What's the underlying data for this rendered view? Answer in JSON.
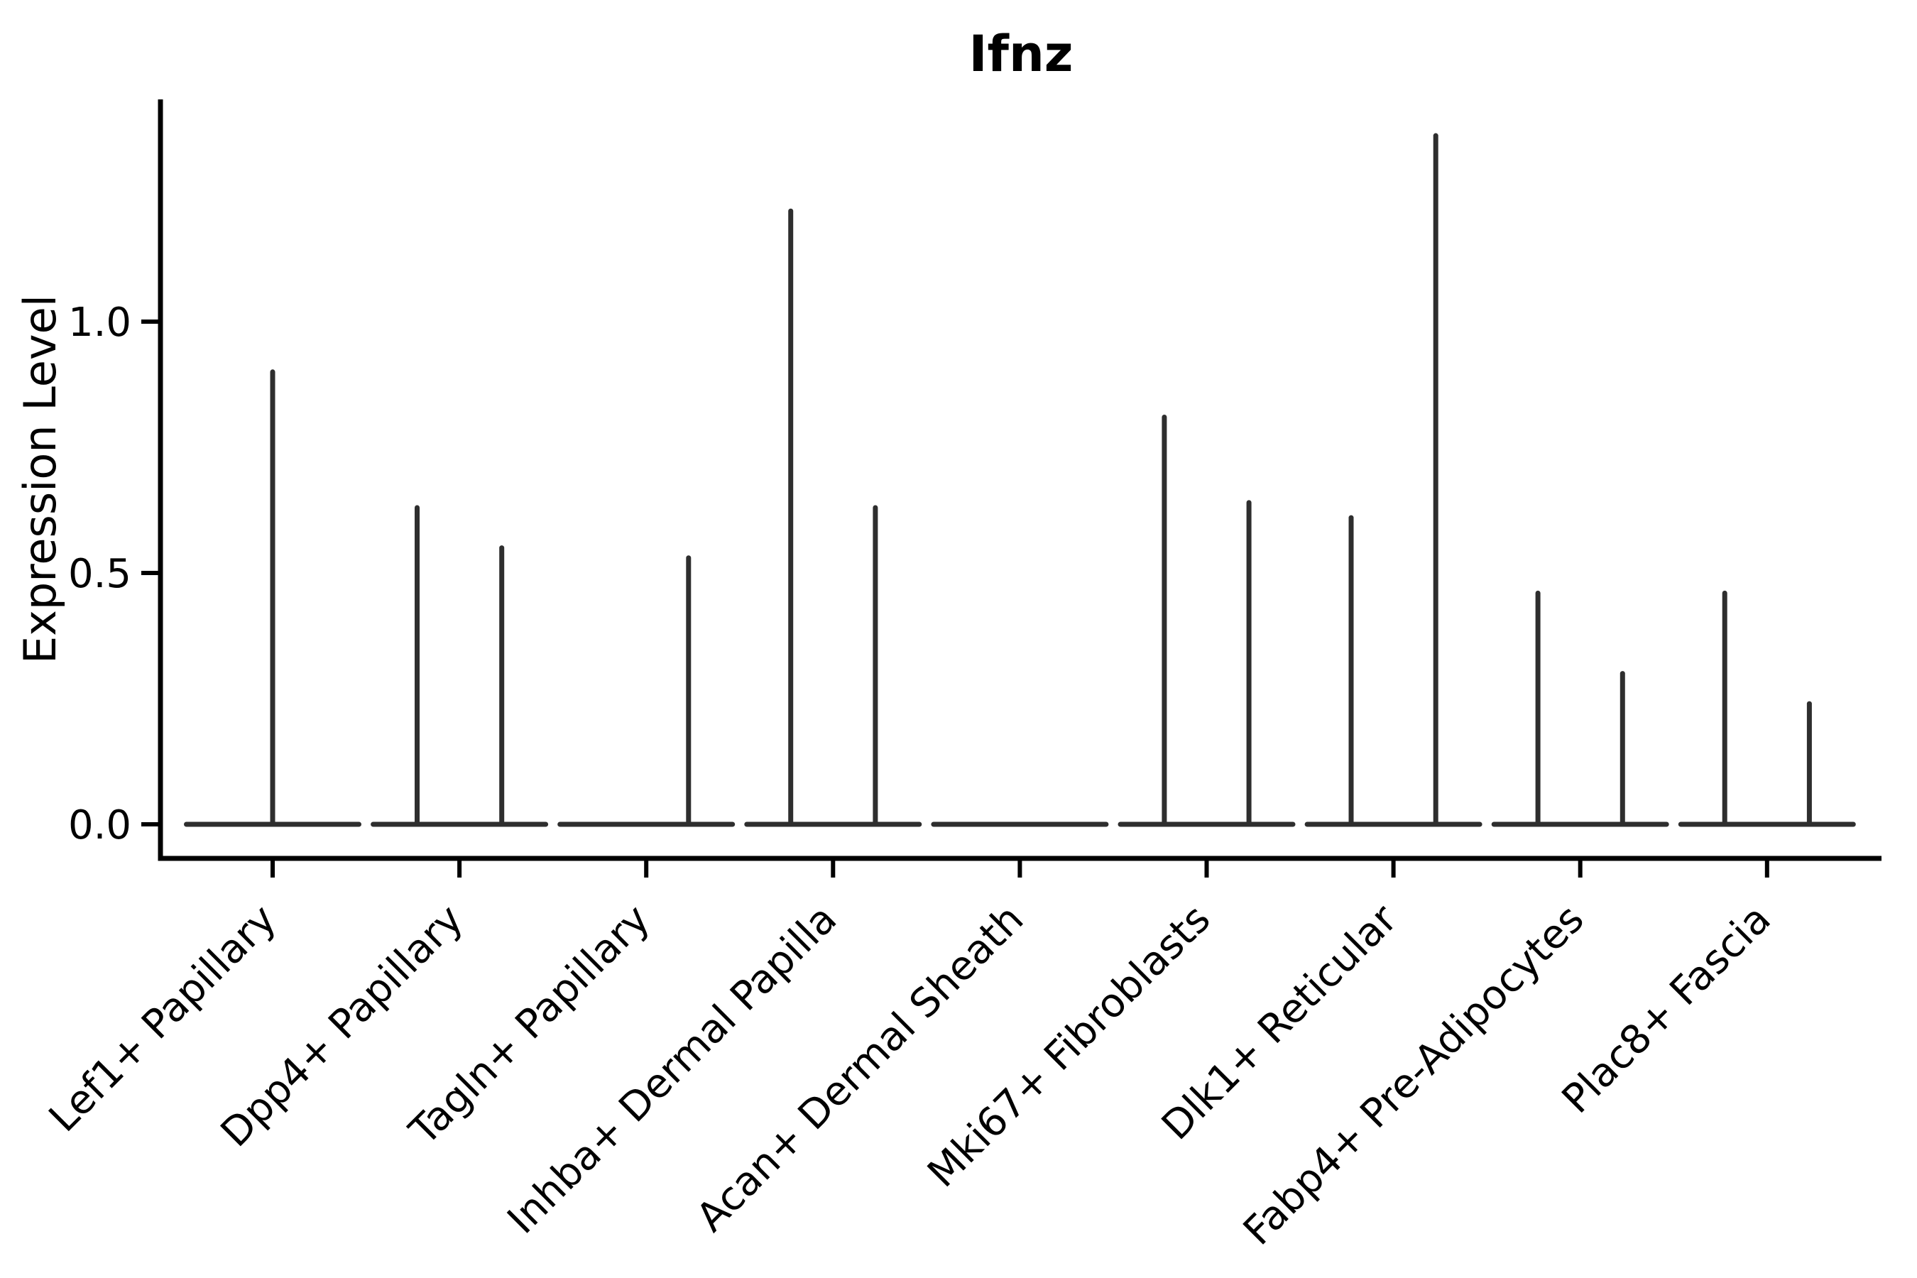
{
  "title": "Ifnz",
  "y_axis": {
    "label": "Expression Level",
    "tick_labels": [
      "0.0",
      "0.5",
      "1.0"
    ]
  },
  "x_axis": {
    "label": "",
    "tick_labels": [
      "Lef1+ Papillary",
      "Dpp4+ Papillary",
      "Tagln+ Papillary",
      "Inhba+ Dermal Papilla",
      "Acan+ Dermal Sheath",
      "Mki67+ Fibroblasts",
      "Dlk1+ Reticular",
      "Fabp4+ Pre-Adipocytes",
      "Plac8+ Fascia"
    ]
  },
  "colors": {
    "violin": "#2e2e2e",
    "axis": "#000000",
    "text": "#000000",
    "background": "#ffffff"
  },
  "chart_data": {
    "type": "violin",
    "title": "Ifnz",
    "xlabel": "",
    "ylabel": "Expression Level",
    "ylim": [
      0,
      1.44
    ],
    "y_ticks": [
      0.0,
      0.5,
      1.0
    ],
    "grid": false,
    "legend": "none",
    "categories": [
      "Lef1+ Papillary",
      "Dpp4+ Papillary",
      "Tagln+ Papillary",
      "Inhba+ Dermal Papilla",
      "Acan+ Dermal Sheath",
      "Mki67+ Fibroblasts",
      "Dlk1+ Reticular",
      "Fabp4+ Pre-Adipocytes",
      "Plac8+ Fascia"
    ],
    "violins": [
      {
        "category": "Lef1+ Papillary",
        "baseline_value": 0,
        "spikes": [
          {
            "side": "center",
            "max_expression": 0.9
          }
        ]
      },
      {
        "category": "Dpp4+ Papillary",
        "baseline_value": 0,
        "spikes": [
          {
            "side": "left",
            "max_expression": 0.63
          },
          {
            "side": "right",
            "max_expression": 0.55
          }
        ]
      },
      {
        "category": "Tagln+ Papillary",
        "baseline_value": 0,
        "spikes": [
          {
            "side": "right",
            "max_expression": 0.53
          }
        ]
      },
      {
        "category": "Inhba+ Dermal Papilla",
        "baseline_value": 0,
        "spikes": [
          {
            "side": "left",
            "max_expression": 1.22
          },
          {
            "side": "right",
            "max_expression": 0.63
          }
        ]
      },
      {
        "category": "Acan+ Dermal Sheath",
        "baseline_value": 0,
        "spikes": []
      },
      {
        "category": "Mki67+ Fibroblasts",
        "baseline_value": 0,
        "spikes": [
          {
            "side": "left",
            "max_expression": 0.81
          },
          {
            "side": "right",
            "max_expression": 0.64
          }
        ]
      },
      {
        "category": "Dlk1+ Reticular",
        "baseline_value": 0,
        "spikes": [
          {
            "side": "left",
            "max_expression": 0.61
          },
          {
            "side": "right",
            "max_expression": 1.37
          }
        ]
      },
      {
        "category": "Fabp4+ Pre-Adipocytes",
        "baseline_value": 0,
        "spikes": [
          {
            "side": "left",
            "max_expression": 0.46
          },
          {
            "side": "right",
            "max_expression": 0.3
          }
        ]
      },
      {
        "category": "Plac8+ Fascia",
        "baseline_value": 0,
        "spikes": [
          {
            "side": "left",
            "max_expression": 0.46
          },
          {
            "side": "right",
            "max_expression": 0.24
          }
        ]
      }
    ]
  }
}
